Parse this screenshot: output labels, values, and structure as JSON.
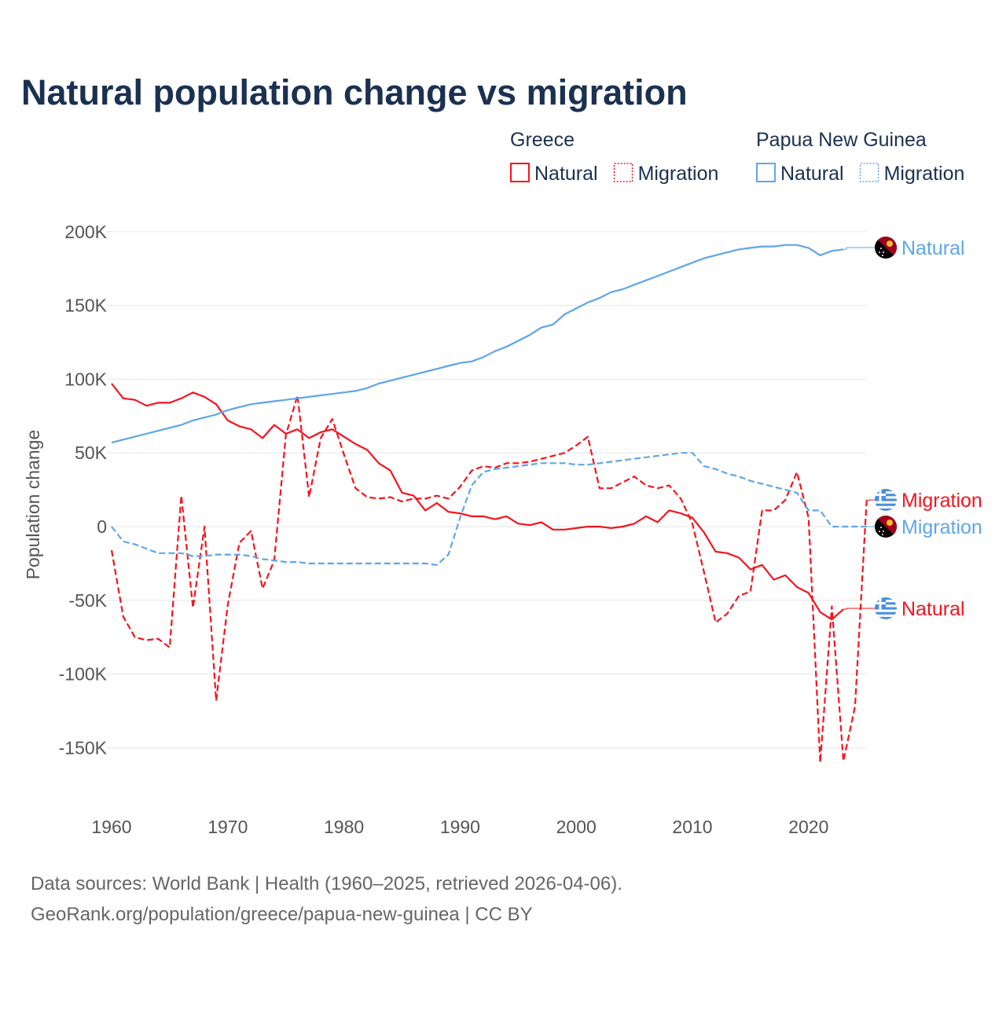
{
  "chart_data": {
    "type": "line",
    "title": "Natural population change vs migration",
    "ylabel": "Population change",
    "xlabel": "",
    "ylim": [
      -170000,
      210000
    ],
    "xlim": [
      1960,
      2025
    ],
    "grid": true,
    "y_ticks": [
      200000,
      150000,
      100000,
      50000,
      0,
      -50000,
      -100000,
      -150000
    ],
    "y_tick_labels": [
      "200K",
      "150K",
      "100K",
      "50K",
      "0",
      "-50K",
      "-100K",
      "-150K"
    ],
    "x_ticks": [
      1960,
      1970,
      1980,
      1990,
      2000,
      2010,
      2020
    ],
    "x_tick_labels": [
      "1960",
      "1970",
      "1980",
      "1990",
      "2000",
      "2010",
      "2020"
    ],
    "legend": {
      "placement": "top-right",
      "groups": [
        {
          "title": "Greece",
          "entries": [
            "Natural",
            "Migration"
          ]
        },
        {
          "title": "Papua New Guinea",
          "entries": [
            "Natural",
            "Migration"
          ]
        }
      ]
    },
    "colors": {
      "greece": "#f5141e",
      "png": "#5ea6ea"
    },
    "series": [
      {
        "name": "Greece Natural",
        "country": "greece",
        "style": "solid",
        "end_label": "Natural",
        "start": 1960,
        "values": [
          97,
          87,
          86,
          82,
          84,
          84,
          87,
          91,
          88,
          83,
          72,
          68,
          66,
          60,
          69,
          63,
          66,
          60,
          64,
          66,
          61,
          56,
          52,
          43,
          38,
          23,
          21,
          11,
          16,
          10,
          9,
          7,
          7,
          5,
          7,
          2,
          1,
          3,
          -2,
          -2,
          -1,
          0,
          0,
          -1,
          0,
          2,
          7,
          3,
          11,
          9,
          6,
          -4,
          -17,
          -18,
          -21,
          -29,
          -26,
          -36,
          -33,
          -41,
          -45,
          -58,
          -63,
          -56
        ]
      },
      {
        "name": "Greece Migration",
        "country": "greece",
        "style": "dashed",
        "end_label": "Migration",
        "start": 1960,
        "values": [
          -16,
          -61,
          -75,
          -77,
          -76,
          -82,
          21,
          -55,
          0,
          -118,
          -53,
          -11,
          -3,
          -42,
          -23,
          62,
          89,
          20,
          60,
          73,
          49,
          26,
          20,
          19,
          20,
          17,
          19,
          19,
          21,
          19,
          27,
          38,
          41,
          40,
          43,
          43,
          44,
          46,
          48,
          50,
          55,
          61,
          26,
          26,
          30,
          34,
          28,
          26,
          28,
          19,
          2,
          -31,
          -65,
          -59,
          -47,
          -44,
          11,
          11,
          18,
          37,
          6,
          -160,
          -54,
          -159,
          -122,
          18
        ]
      },
      {
        "name": "Papua New Guinea Natural",
        "country": "png",
        "style": "solid",
        "end_label": "Natural",
        "start": 1960,
        "values": [
          57,
          59,
          61,
          63,
          65,
          67,
          69,
          72,
          74,
          76,
          79,
          81,
          83,
          84,
          85,
          86,
          87,
          88,
          89,
          90,
          91,
          92,
          94,
          97,
          99,
          101,
          103,
          105,
          107,
          109,
          111,
          112,
          115,
          119,
          122,
          126,
          130,
          135,
          137,
          144,
          148,
          152,
          155,
          159,
          161,
          164,
          167,
          170,
          173,
          176,
          179,
          182,
          184,
          186,
          188,
          189,
          190,
          190,
          191,
          191,
          189,
          184,
          187,
          188
        ]
      },
      {
        "name": "Papua New Guinea Migration",
        "country": "png",
        "style": "dashed",
        "end_label": "Migration",
        "start": 1960,
        "values": [
          0,
          -10,
          -12,
          -15,
          -18,
          -18,
          -18,
          -20,
          -20,
          -19,
          -19,
          -19,
          -20,
          -22,
          -23,
          -24,
          -24,
          -25,
          -25,
          -25,
          -25,
          -25,
          -25,
          -25,
          -25,
          -25,
          -25,
          -25,
          -26,
          -19,
          6,
          28,
          37,
          39,
          40,
          41,
          42,
          43,
          43,
          43,
          42,
          42,
          43,
          44,
          45,
          46,
          47,
          48,
          49,
          50,
          50,
          41,
          39,
          36,
          34,
          31,
          29,
          27,
          25,
          23,
          11,
          11,
          0,
          0,
          0,
          0
        ]
      }
    ],
    "value_unit": "thousands"
  },
  "footer": {
    "line1": "Data sources: World Bank | Health (1960–2025, retrieved 2026-04-06).",
    "line2": "GeoRank.org/population/greece/papua-new-guinea | CC BY"
  }
}
